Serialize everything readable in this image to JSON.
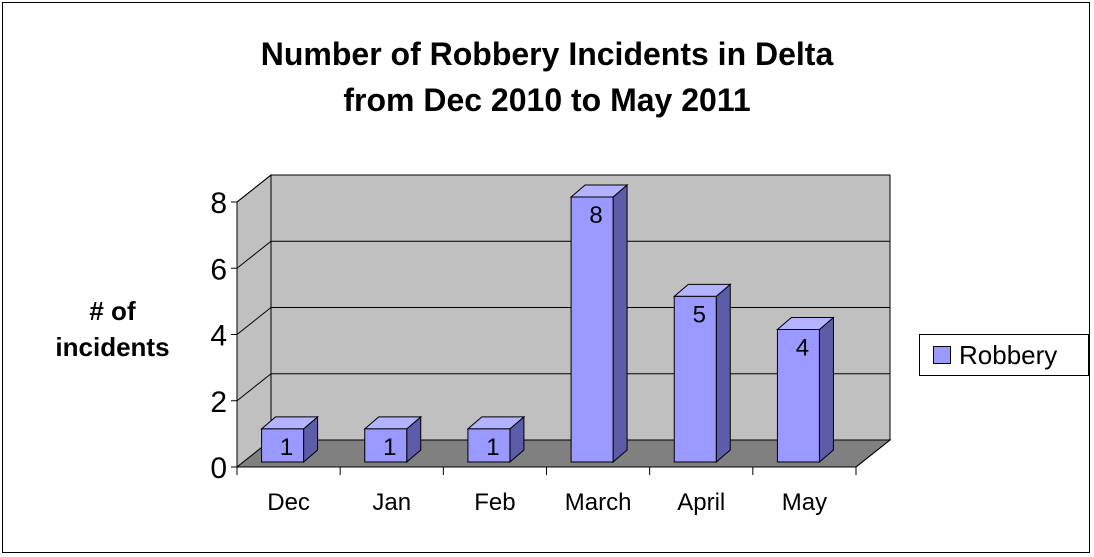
{
  "chart_data": {
    "type": "bar",
    "title_lines": [
      "Number of Robbery Incidents in Delta",
      "from Dec 2010 to May 2011"
    ],
    "ylabel_lines": [
      "# of",
      "incidents"
    ],
    "xlabel": "",
    "categories": [
      "Dec",
      "Jan",
      "Feb",
      "March",
      "April",
      "May"
    ],
    "series": [
      {
        "name": "Robbery",
        "values": [
          1,
          1,
          1,
          8,
          5,
          4
        ]
      }
    ],
    "data_labels": [
      "1",
      "1",
      "1",
      "8",
      "5",
      "4"
    ],
    "ylim": [
      0,
      8
    ],
    "yticks": [
      "0",
      "2",
      "4",
      "6",
      "8"
    ],
    "grid": true,
    "legend_position": "right",
    "colors": {
      "bar_front": "#9999ff",
      "bar_top": "#b3b3ff",
      "bar_side": "#5c5ca8",
      "wall": "#c0c0c0",
      "floor": "#808080"
    }
  }
}
